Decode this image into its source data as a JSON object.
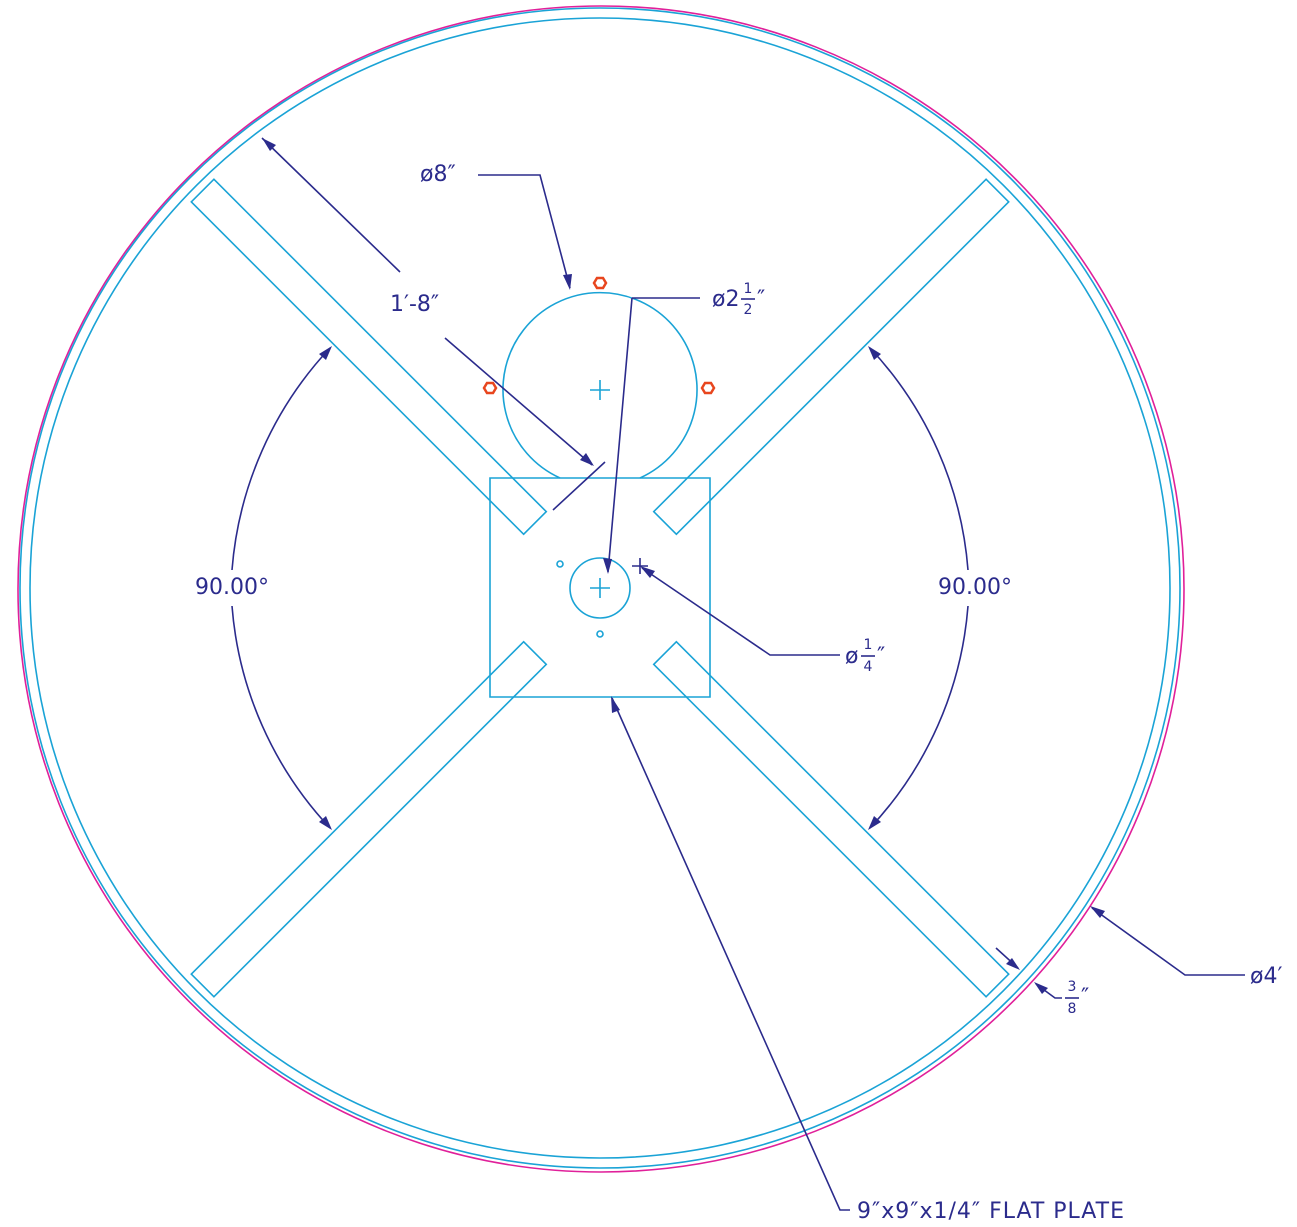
{
  "dimensions": {
    "plate_circle": "ø8″",
    "strut_length": "1′-8″",
    "pipe": {
      "prefix": "ø2",
      "numerator": "1",
      "denominator": "2",
      "suffix": "″"
    },
    "angle_left": "90.00°",
    "angle_right": "90.00°",
    "hole": {
      "prefix": "ø",
      "numerator": "1",
      "denominator": "4",
      "suffix": "″"
    },
    "outer": "ø4′",
    "rim": {
      "numerator": "3",
      "denominator": "8",
      "suffix": "″"
    },
    "plate": "9″x9″x1/4″ FLAT PLATE"
  }
}
